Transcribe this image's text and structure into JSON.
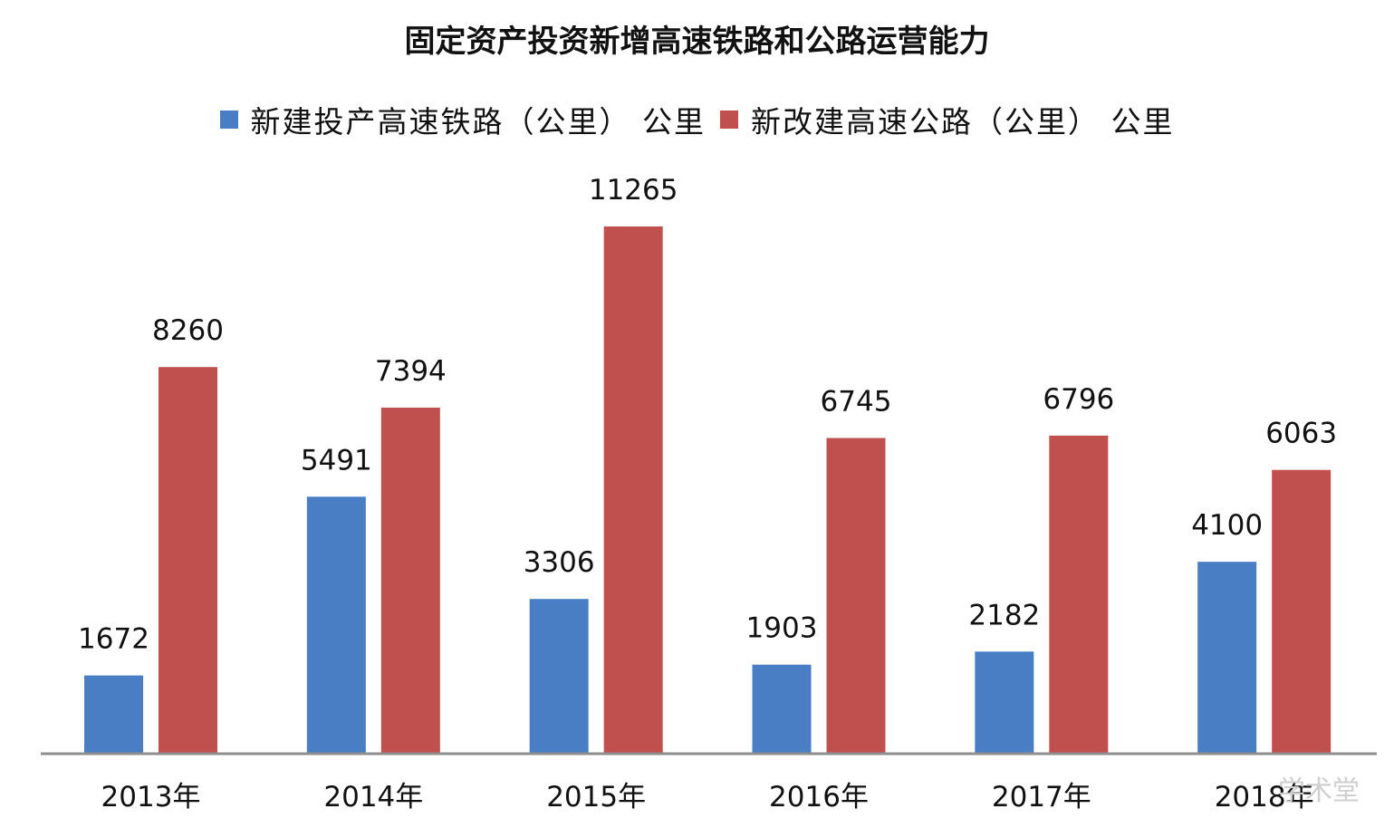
{
  "chart_data": {
    "type": "bar",
    "title": "固定资产投资新增高速铁路和公路运营能力",
    "categories": [
      "2013年",
      "2014年",
      "2015年",
      "2016年",
      "2017年",
      "2018年"
    ],
    "series": [
      {
        "name": "新建投产高速铁路（公里） 公里",
        "color": "#4a7ec4",
        "values": [
          1672,
          5491,
          3306,
          1903,
          2182,
          4100
        ]
      },
      {
        "name": "新改建高速公路（公里） 公里",
        "color": "#c0504d",
        "values": [
          8260,
          7394,
          11265,
          6745,
          6796,
          6063
        ]
      }
    ],
    "xlabel": "",
    "ylabel": "",
    "ylim": [
      0,
      12000
    ],
    "grid": false,
    "legend": "top",
    "axis_color": "#8e8e8e"
  },
  "watermark": "学术堂"
}
